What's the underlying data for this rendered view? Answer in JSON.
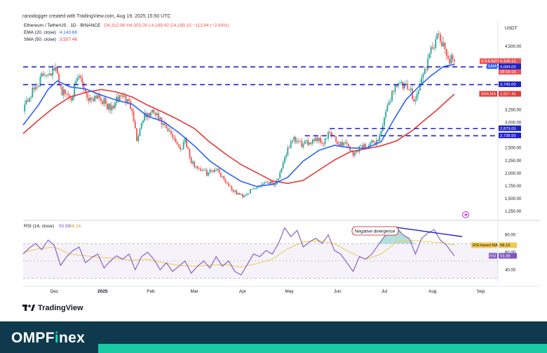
{
  "header_text": "ranodogger created with TradingView.com, Aug 19, 2025 15:50 UTC",
  "legend": {
    "title": "Ethereum / TetherUS · 1D · BINANCE",
    "ohlc": "O4,312.99  H4,355.00  L4,169.42  C4,199.15  −113.84 (−2.64%)",
    "ema_label": "EMA (20, close)",
    "ema_value": "4,143.66",
    "sma_label": "SMA (50, close)",
    "sma_value": "3,557.46"
  },
  "colors": {
    "up": "#26a69a",
    "down": "#ef5350",
    "ema": "#2962ff",
    "sma": "#e53935",
    "level": "#1e22c6",
    "rsi": "#7e57c2",
    "rsi_ma": "#f2c94c",
    "footer": "#0f3a4d",
    "accent": "#1fd8b1"
  },
  "chart_data": [
    {
      "type": "candlestick",
      "title": "Ethereum / TetherUS · 1D · BINANCE",
      "ylabel": "USDT",
      "ylim": [
        1100,
        4900
      ],
      "y_ticks": [
        "4,500.00",
        "3,250.00",
        "3,000.00",
        "2,500.00",
        "2,250.00",
        "2,000.00",
        "1,750.00",
        "1,500.00",
        "1,250.00"
      ],
      "x_ticks": [
        "Dec",
        "2025",
        "Feb",
        "Mar",
        "Apr",
        "May",
        "Jun",
        "Jul",
        "Aug",
        "Sep"
      ],
      "x_days": [
        20,
        51,
        82,
        110,
        141,
        171,
        202,
        232,
        263,
        294
      ],
      "last_day": 277,
      "anchors": [
        [
          0,
          3300
        ],
        [
          8,
          3700
        ],
        [
          14,
          3980
        ],
        [
          21,
          4020
        ],
        [
          25,
          3600
        ],
        [
          31,
          3520
        ],
        [
          36,
          3900
        ],
        [
          42,
          3450
        ],
        [
          48,
          3550
        ],
        [
          56,
          3250
        ],
        [
          63,
          3550
        ],
        [
          70,
          3300
        ],
        [
          73,
          2650
        ],
        [
          77,
          3100
        ],
        [
          84,
          3200
        ],
        [
          92,
          2850
        ],
        [
          97,
          2700
        ],
        [
          101,
          2450
        ],
        [
          104,
          2700
        ],
        [
          108,
          2200
        ],
        [
          118,
          2000
        ],
        [
          124,
          2100
        ],
        [
          130,
          1850
        ],
        [
          136,
          1620
        ],
        [
          141,
          1560
        ],
        [
          150,
          1720
        ],
        [
          156,
          1840
        ],
        [
          162,
          1800
        ],
        [
          166,
          2050
        ],
        [
          170,
          2500
        ],
        [
          174,
          2650
        ],
        [
          180,
          2550
        ],
        [
          188,
          2700
        ],
        [
          193,
          2600
        ],
        [
          197,
          2800
        ],
        [
          202,
          2580
        ],
        [
          208,
          2600
        ],
        [
          212,
          2350
        ],
        [
          216,
          2520
        ],
        [
          222,
          2550
        ],
        [
          228,
          2650
        ],
        [
          232,
          3050
        ],
        [
          236,
          3500
        ],
        [
          240,
          3800
        ],
        [
          244,
          3700
        ],
        [
          248,
          3650
        ],
        [
          252,
          3450
        ],
        [
          256,
          3850
        ],
        [
          260,
          4200
        ],
        [
          265,
          4650
        ],
        [
          268,
          4620
        ],
        [
          271,
          4380
        ],
        [
          274,
          4250
        ],
        [
          277,
          4199.15
        ]
      ],
      "ema": {
        "label": "EMA (20, close)",
        "value": "4,143.66",
        "points": [
          [
            0,
            2950
          ],
          [
            10,
            3350
          ],
          [
            16,
            3650
          ],
          [
            22,
            3820
          ],
          [
            30,
            3700
          ],
          [
            40,
            3660
          ],
          [
            50,
            3540
          ],
          [
            60,
            3440
          ],
          [
            70,
            3360
          ],
          [
            80,
            3120
          ],
          [
            90,
            3020
          ],
          [
            100,
            2800
          ],
          [
            110,
            2540
          ],
          [
            120,
            2240
          ],
          [
            130,
            2030
          ],
          [
            140,
            1840
          ],
          [
            150,
            1740
          ],
          [
            160,
            1780
          ],
          [
            170,
            1920
          ],
          [
            180,
            2240
          ],
          [
            190,
            2450
          ],
          [
            200,
            2550
          ],
          [
            210,
            2500
          ],
          [
            220,
            2490
          ],
          [
            230,
            2620
          ],
          [
            238,
            3050
          ],
          [
            246,
            3450
          ],
          [
            254,
            3700
          ],
          [
            262,
            3920
          ],
          [
            270,
            4100
          ],
          [
            277,
            4143.66
          ]
        ]
      },
      "sma": {
        "label": "SMA (50, close)",
        "value": "3,557.46",
        "points": [
          [
            0,
            2780
          ],
          [
            10,
            3050
          ],
          [
            20,
            3300
          ],
          [
            30,
            3500
          ],
          [
            40,
            3590
          ],
          [
            50,
            3650
          ],
          [
            60,
            3600
          ],
          [
            70,
            3500
          ],
          [
            80,
            3340
          ],
          [
            90,
            3200
          ],
          [
            100,
            3050
          ],
          [
            110,
            2880
          ],
          [
            120,
            2610
          ],
          [
            130,
            2380
          ],
          [
            140,
            2170
          ],
          [
            150,
            2010
          ],
          [
            160,
            1850
          ],
          [
            170,
            1800
          ],
          [
            180,
            1860
          ],
          [
            190,
            2060
          ],
          [
            200,
            2260
          ],
          [
            210,
            2420
          ],
          [
            220,
            2480
          ],
          [
            230,
            2540
          ],
          [
            240,
            2640
          ],
          [
            250,
            2840
          ],
          [
            258,
            3050
          ],
          [
            266,
            3250
          ],
          [
            272,
            3420
          ],
          [
            277,
            3557.46
          ]
        ]
      },
      "levels": [
        {
          "value": 4094.0,
          "label": "4,094.00",
          "from_day": 0
        },
        {
          "value": 3745.0,
          "label": "3,745.00",
          "from_day": 0
        },
        {
          "value": 2879.0,
          "label": "2,879.00",
          "from_day": 197
        },
        {
          "value": 2738.5,
          "label": "2,738.50",
          "from_day": 181
        }
      ],
      "price_tags": [
        {
          "text": "4,199.15",
          "bg": "#ef5350"
        },
        {
          "text": "−35.13%",
          "bg": "#ef5350"
        },
        {
          "text": "08:09:18",
          "bg": "#ef5350"
        },
        {
          "text": "4,143.66",
          "bg": "#2962ff",
          "tag": "EMA"
        },
        {
          "text": "3,557.46",
          "bg": "#e53935",
          "tag": "SMA:MA"
        }
      ],
      "symbol_tag": "ETHUSDT",
      "ghost_tick": "4,250.00"
    },
    {
      "type": "line",
      "title": "RSI (14, close)",
      "rsi_value": "55.98",
      "rsi_ma_value": "68.16",
      "ylim": [
        25,
        95
      ],
      "y_ticks": [
        "80.00",
        "60.00",
        "40.00"
      ],
      "band": [
        30,
        70
      ],
      "rsi_points": [
        [
          0,
          58
        ],
        [
          4,
          65
        ],
        [
          8,
          70
        ],
        [
          12,
          63
        ],
        [
          16,
          74
        ],
        [
          20,
          68
        ],
        [
          24,
          45
        ],
        [
          28,
          55
        ],
        [
          32,
          62
        ],
        [
          36,
          66
        ],
        [
          40,
          48
        ],
        [
          44,
          54
        ],
        [
          48,
          58
        ],
        [
          52,
          42
        ],
        [
          56,
          50
        ],
        [
          60,
          56
        ],
        [
          64,
          52
        ],
        [
          68,
          58
        ],
        [
          72,
          40
        ],
        [
          76,
          55
        ],
        [
          80,
          60
        ],
        [
          84,
          52
        ],
        [
          88,
          40
        ],
        [
          92,
          48
        ],
        [
          96,
          38
        ],
        [
          100,
          44
        ],
        [
          104,
          50
        ],
        [
          108,
          36
        ],
        [
          112,
          44
        ],
        [
          116,
          50
        ],
        [
          120,
          42
        ],
        [
          124,
          55
        ],
        [
          128,
          44
        ],
        [
          132,
          50
        ],
        [
          136,
          38
        ],
        [
          140,
          34
        ],
        [
          144,
          46
        ],
        [
          148,
          58
        ],
        [
          152,
          55
        ],
        [
          156,
          62
        ],
        [
          160,
          58
        ],
        [
          164,
          70
        ],
        [
          168,
          88
        ],
        [
          172,
          78
        ],
        [
          176,
          85
        ],
        [
          180,
          66
        ],
        [
          184,
          72
        ],
        [
          188,
          76
        ],
        [
          192,
          70
        ],
        [
          196,
          80
        ],
        [
          200,
          62
        ],
        [
          204,
          58
        ],
        [
          208,
          48
        ],
        [
          212,
          38
        ],
        [
          216,
          55
        ],
        [
          220,
          52
        ],
        [
          224,
          58
        ],
        [
          228,
          68
        ],
        [
          232,
          78
        ],
        [
          236,
          84
        ],
        [
          240,
          88
        ],
        [
          244,
          80
        ],
        [
          248,
          76
        ],
        [
          252,
          58
        ],
        [
          256,
          76
        ],
        [
          260,
          82
        ],
        [
          264,
          86
        ],
        [
          268,
          74
        ],
        [
          272,
          68
        ],
        [
          277,
          55.98
        ]
      ],
      "rsi_ma_points": [
        [
          0,
          60
        ],
        [
          10,
          64
        ],
        [
          20,
          66
        ],
        [
          30,
          58
        ],
        [
          40,
          56
        ],
        [
          50,
          54
        ],
        [
          60,
          53
        ],
        [
          70,
          51
        ],
        [
          80,
          52
        ],
        [
          90,
          48
        ],
        [
          100,
          45
        ],
        [
          110,
          44
        ],
        [
          120,
          45
        ],
        [
          130,
          46
        ],
        [
          140,
          43
        ],
        [
          150,
          47
        ],
        [
          160,
          52
        ],
        [
          170,
          64
        ],
        [
          180,
          72
        ],
        [
          190,
          73
        ],
        [
          200,
          70
        ],
        [
          210,
          60
        ],
        [
          220,
          52
        ],
        [
          230,
          58
        ],
        [
          240,
          72
        ],
        [
          250,
          74
        ],
        [
          260,
          72
        ],
        [
          270,
          71
        ],
        [
          277,
          68.16
        ]
      ],
      "annotation": "Negative divergence",
      "divergence_line": [
        [
          238,
          89
        ],
        [
          282,
          78
        ]
      ]
    }
  ],
  "brand": {
    "tv_name": "TradingView",
    "name_main": "OMPF",
    "name_x": "i",
    "name_end": "nex"
  }
}
